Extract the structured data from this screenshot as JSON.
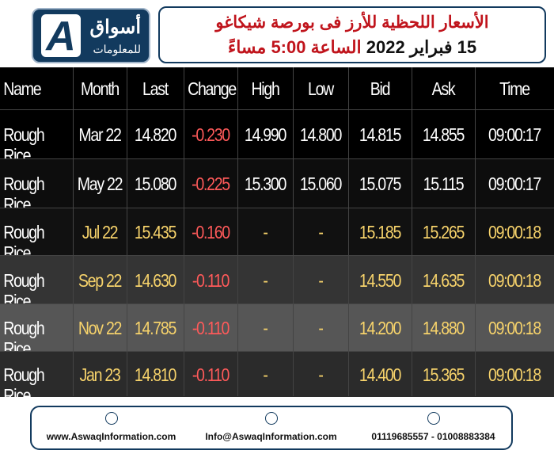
{
  "header": {
    "logo": {
      "name": "أسواق",
      "tagline": "للمعلومات",
      "letter": "A"
    },
    "title": "الأسعار اللحظية للأرز فى بورصة شيكاغو",
    "subtitle_date": "15 فبراير 2022",
    "subtitle_time": "الساعة 5:00 مساءً"
  },
  "table": {
    "columns": [
      "Name",
      "Month",
      "Last",
      "Change",
      "High",
      "Low",
      "Bid",
      "Ask",
      "Time"
    ],
    "rows": [
      [
        "Rough Rice",
        "Mar 22",
        "14.820",
        "-0.230",
        "14.990",
        "14.800",
        "14.815",
        "14.855",
        "09:00:17"
      ],
      [
        "Rough Rice",
        "May 22",
        "15.080",
        "-0.225",
        "15.300",
        "15.060",
        "15.075",
        "15.115",
        "09:00:17"
      ],
      [
        "Rough Rice",
        "Jul 22",
        "15.435",
        "-0.160",
        "-",
        "-",
        "15.185",
        "15.265",
        "09:00:18"
      ],
      [
        "Rough Rice",
        "Sep 22",
        "14.630",
        "-0.110",
        "-",
        "-",
        "14.550",
        "14.635",
        "09:00:18"
      ],
      [
        "Rough Rice",
        "Nov 22",
        "14.785",
        "-0.110",
        "-",
        "-",
        "14.200",
        "14.880",
        "09:00:18"
      ],
      [
        "Rough Rice",
        "Jan 23",
        "14.810",
        "-0.110",
        "-",
        "-",
        "14.400",
        "15.365",
        "09:00:18"
      ]
    ]
  },
  "footer": {
    "website": "www.AswaqInformation.com",
    "email": "Info@AswaqInformation.com",
    "phones": "01119685557 - 01008883384"
  }
}
